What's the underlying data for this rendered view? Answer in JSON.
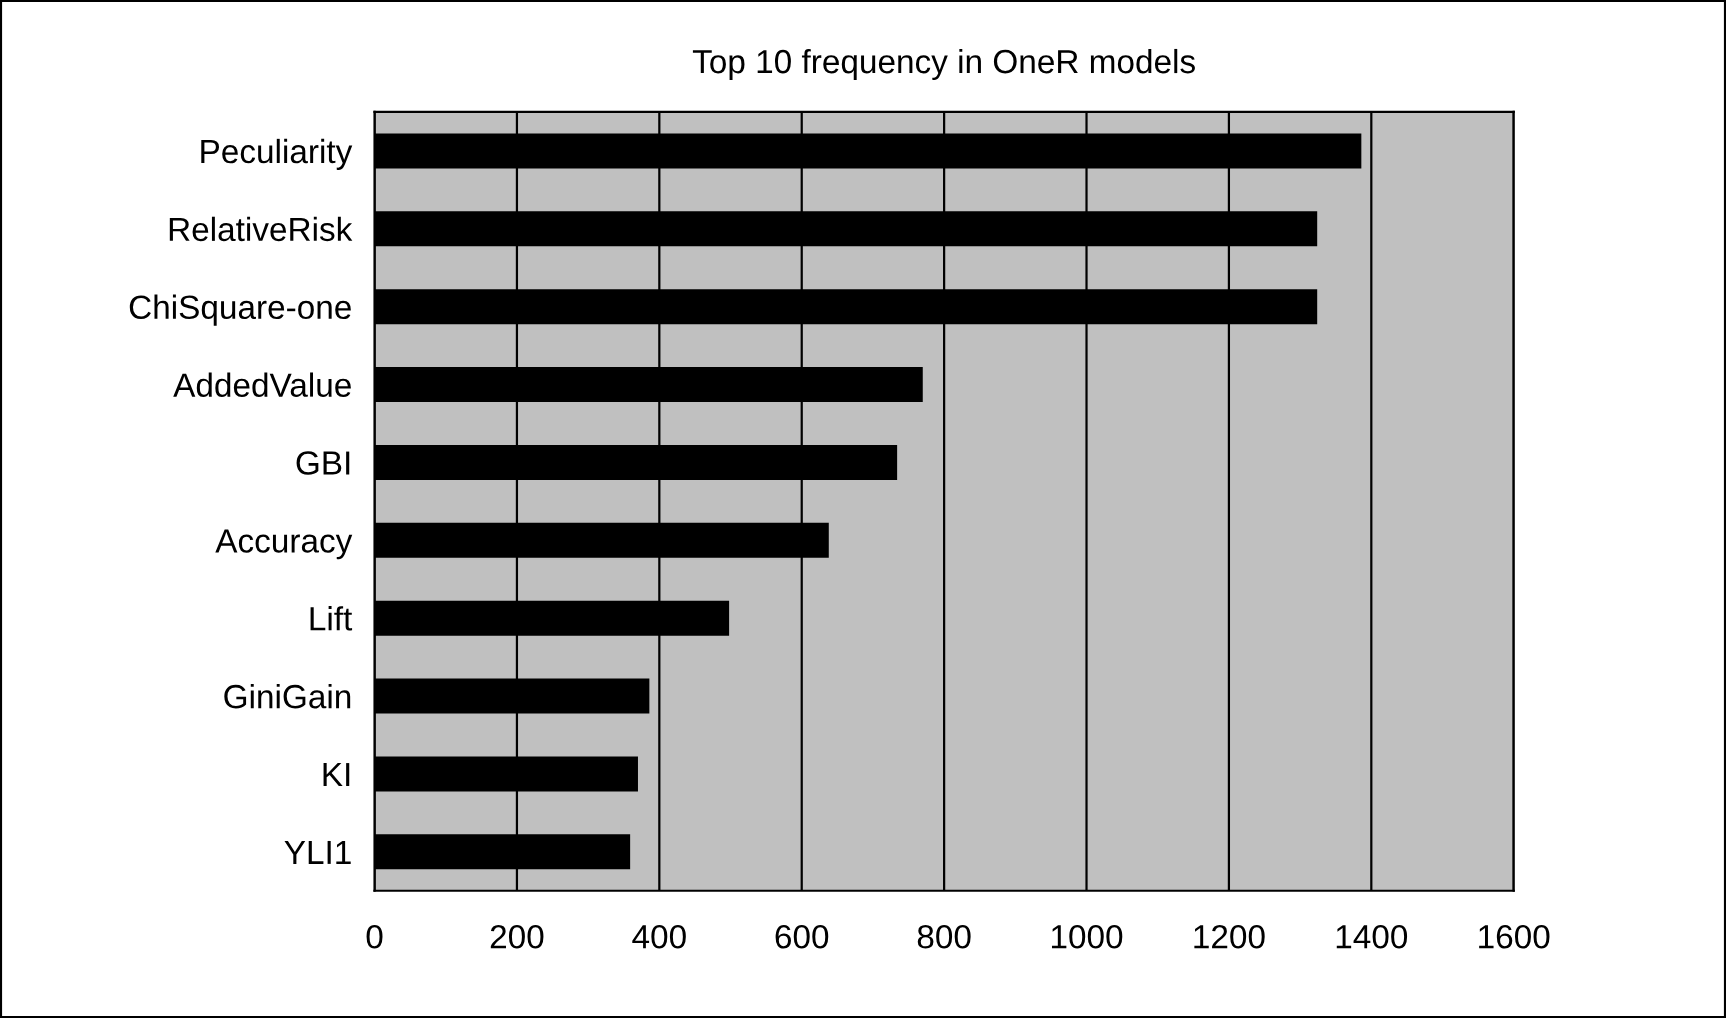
{
  "chart_data": {
    "type": "bar",
    "orientation": "horizontal",
    "title": "Top 10 frequency in OneR models",
    "categories": [
      "Peculiarity",
      "RelativeRisk",
      "ChiSquare-one",
      "AddedValue",
      "GBI",
      "Accuracy",
      "Lift",
      "GiniGain",
      "KI",
      "YLI1"
    ],
    "values": [
      1386,
      1324,
      1324,
      770,
      734,
      638,
      498,
      386,
      370,
      359
    ],
    "color": "#000000",
    "xlim": [
      0,
      1600
    ],
    "xticks": [
      0,
      200,
      400,
      600,
      800,
      1000,
      1200,
      1400,
      1600
    ],
    "grid": "x"
  }
}
